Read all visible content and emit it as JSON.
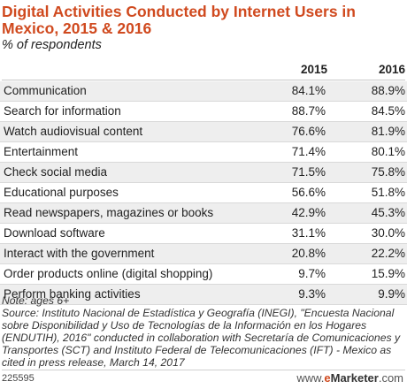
{
  "chart_data": {
    "type": "table",
    "title": "Digital Activities Conducted by Internet Users in Mexico, 2015 & 2016",
    "subtitle": "% of respondents",
    "columns": [
      "2015",
      "2016"
    ],
    "rows": [
      {
        "label": "Communication",
        "values": [
          "84.1%",
          "88.9%"
        ]
      },
      {
        "label": "Search for information",
        "values": [
          "88.7%",
          "84.5%"
        ]
      },
      {
        "label": "Watch audiovisual content",
        "values": [
          "76.6%",
          "81.9%"
        ]
      },
      {
        "label": "Entertainment",
        "values": [
          "71.4%",
          "80.1%"
        ]
      },
      {
        "label": "Check social media",
        "values": [
          "71.5%",
          "75.8%"
        ]
      },
      {
        "label": "Educational purposes",
        "values": [
          "56.6%",
          "51.8%"
        ]
      },
      {
        "label": "Read newspapers, magazines or books",
        "values": [
          "42.9%",
          "45.3%"
        ]
      },
      {
        "label": "Download software",
        "values": [
          "31.1%",
          "30.0%"
        ]
      },
      {
        "label": "Interact with the government",
        "values": [
          "20.8%",
          "22.2%"
        ]
      },
      {
        "label": "Order products online (digital shopping)",
        "values": [
          "9.7%",
          "15.9%"
        ]
      },
      {
        "label": "Perform banking activities",
        "values": [
          "9.3%",
          "9.9%"
        ]
      }
    ]
  },
  "notes": "Note: ages 6+\nSource: Instituto Nacional de Estadística y Geografía (INEGI), \"Encuesta Nacional sobre Disponibilidad y Uso de Tecnologías de la Información en los Hogares (ENDUTIH), 2016\" conducted in collaboration with Secretaría de Comunicaciones y Transportes (SCT) and Instituto Federal de Telecomunicaciones (IFT) - Mexico as cited in press release, March 14, 2017",
  "footer": {
    "code": "225595",
    "brand_prefix": "www.",
    "brand_e": "e",
    "brand_name": "Marketer",
    "brand_suffix": ".com"
  },
  "colors": {
    "title": "#d04a1f",
    "row_shade": "#eeeeee"
  }
}
